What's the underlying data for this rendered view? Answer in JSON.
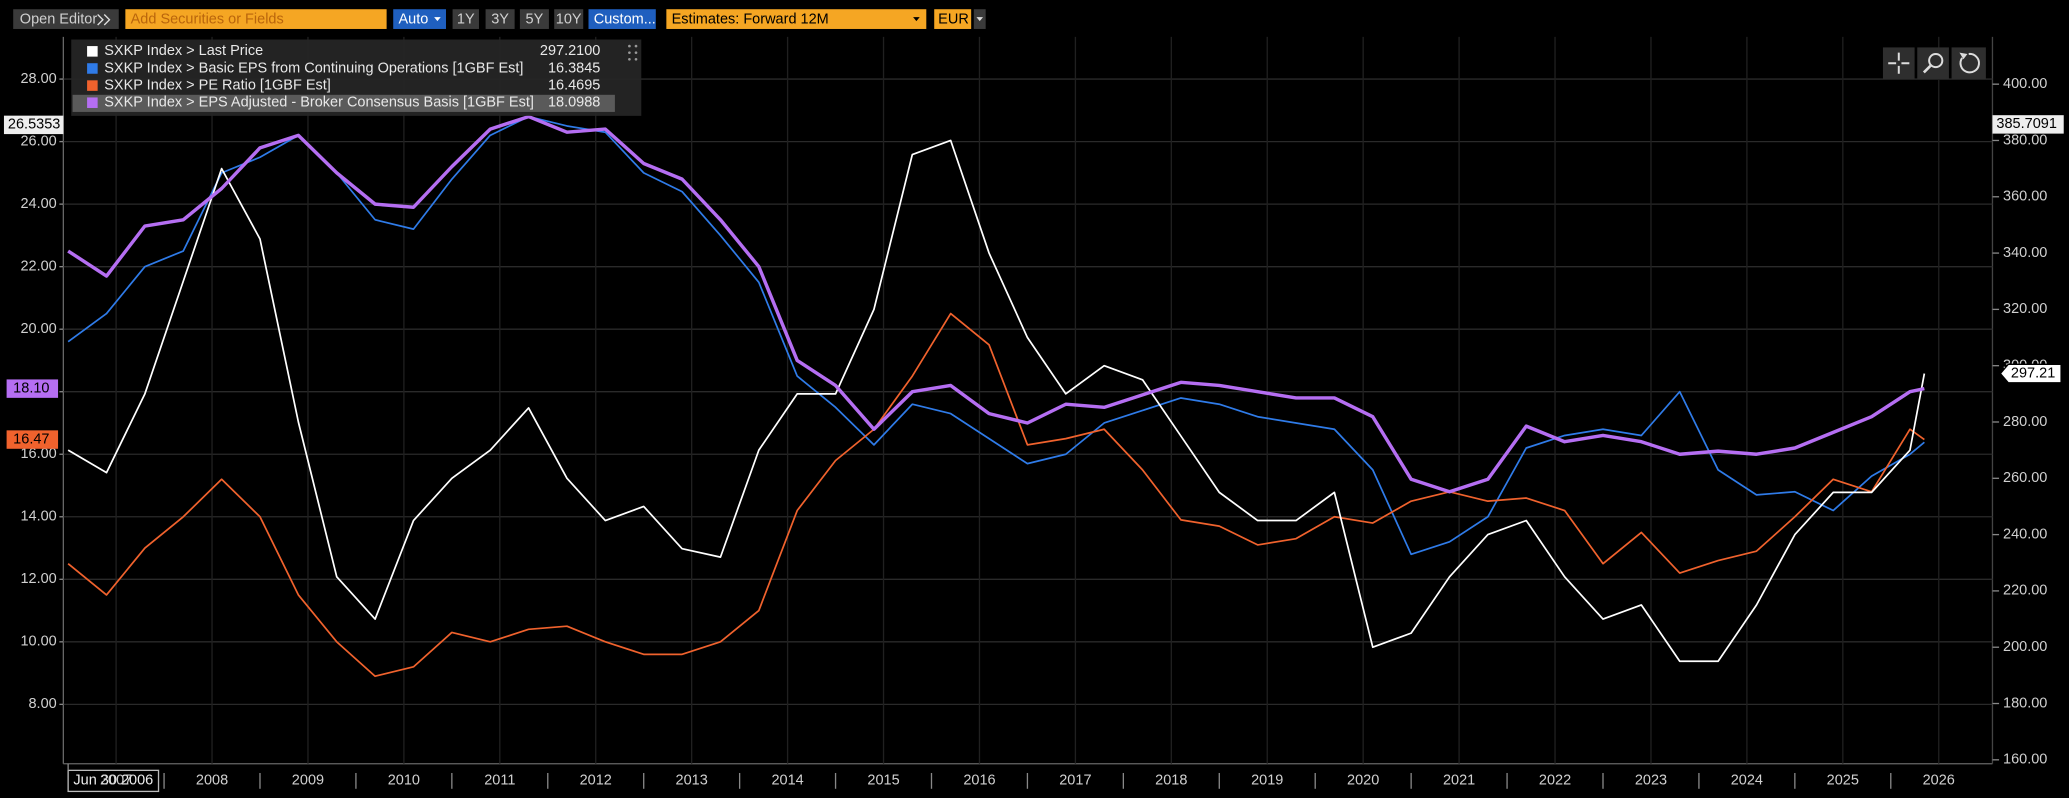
{
  "toolbar": {
    "open_editor": "Open Editor",
    "search_placeholder": "Add Securities or Fields",
    "auto": "Auto",
    "ranges": [
      "1Y",
      "3Y",
      "5Y",
      "10Y"
    ],
    "custom": "Custom...",
    "estimates": "Estimates: Forward 12M",
    "currency": "EUR"
  },
  "chart_data": {
    "type": "line",
    "x": [
      2006.5,
      2006.9,
      2007.3,
      2007.7,
      2008.1,
      2008.5,
      2008.9,
      2009.3,
      2009.7,
      2010.1,
      2010.5,
      2010.9,
      2011.3,
      2011.7,
      2012.1,
      2012.5,
      2012.9,
      2013.3,
      2013.7,
      2014.1,
      2014.5,
      2014.9,
      2015.3,
      2015.7,
      2016.1,
      2016.5,
      2016.9,
      2017.3,
      2017.7,
      2018.1,
      2018.5,
      2018.9,
      2019.3,
      2019.7,
      2020.1,
      2020.5,
      2020.9,
      2021.3,
      2021.7,
      2022.1,
      2022.5,
      2022.9,
      2023.3,
      2023.7,
      2024.1,
      2024.5,
      2024.9,
      2025.3,
      2025.7,
      2025.85
    ],
    "series": [
      {
        "name": "SXKP Index > Last Price",
        "color": "#ffffff",
        "axis": "y2",
        "legend_value": "297.2100",
        "last_label": "297.21",
        "values": [
          270,
          262,
          290,
          330,
          370,
          345,
          280,
          225,
          210,
          245,
          260,
          270,
          285,
          260,
          245,
          250,
          235,
          232,
          270,
          290,
          290,
          320,
          375,
          380,
          340,
          310,
          290,
          300,
          295,
          275,
          255,
          245,
          245,
          255,
          200,
          205,
          225,
          240,
          245,
          225,
          210,
          215,
          195,
          195,
          215,
          240,
          255,
          255,
          270,
          297.21
        ]
      },
      {
        "name": "SXKP Index > Basic EPS from Continuing Operations [1GBF Est]",
        "color": "#2f7be8",
        "legend_value": "16.3845",
        "values": [
          19.6,
          20.5,
          22,
          22.5,
          25,
          25.5,
          26.2,
          25,
          23.5,
          23.2,
          24.8,
          26.2,
          26.8,
          26.5,
          26.3,
          25,
          24.4,
          23,
          21.5,
          18.5,
          17.5,
          16.3,
          17.6,
          17.3,
          16.5,
          15.7,
          16,
          17,
          17.4,
          17.8,
          17.6,
          17.2,
          17,
          16.8,
          15.5,
          12.8,
          13.2,
          14,
          16.2,
          16.6,
          16.8,
          16.6,
          18,
          15.5,
          14.7,
          14.8,
          14.2,
          15.3,
          16,
          16.3845
        ]
      },
      {
        "name": "SXKP Index > PE Ratio [1GBF Est]",
        "color": "#f0622d",
        "legend_value": "16.4695",
        "last_label": "16.47",
        "values": [
          12.5,
          11.5,
          13,
          14,
          15.2,
          14,
          11.5,
          10,
          8.9,
          9.2,
          10.3,
          10,
          10.4,
          10.5,
          10,
          9.6,
          9.6,
          10,
          11,
          14.2,
          15.8,
          16.8,
          18.5,
          20.5,
          19.5,
          16.3,
          16.5,
          16.8,
          15.5,
          13.9,
          13.7,
          13.1,
          13.3,
          14,
          13.8,
          14.5,
          14.8,
          14.5,
          14.6,
          14.2,
          12.5,
          13.5,
          12.2,
          12.6,
          12.9,
          14,
          15.2,
          14.8,
          16.8,
          16.4695
        ]
      },
      {
        "name": "SXKP Index > EPS Adjusted - Broker Consensus Basis [1GBF Est]",
        "color": "#b56ef2",
        "legend_value": "18.0988",
        "last_label": "18.10",
        "values": [
          22.5,
          21.7,
          23.3,
          23.5,
          24.5,
          25.8,
          26.2,
          25,
          24,
          23.9,
          25.2,
          26.4,
          26.8,
          26.3,
          26.4,
          25.3,
          24.8,
          23.5,
          22,
          19,
          18.2,
          16.8,
          18,
          18.2,
          17.3,
          17,
          17.6,
          17.5,
          17.9,
          18.3,
          18.2,
          18,
          17.8,
          17.8,
          17.2,
          15.2,
          14.8,
          15.2,
          16.9,
          16.4,
          16.6,
          16.4,
          16,
          16.1,
          16,
          16.2,
          16.7,
          17.2,
          18,
          18.0988
        ]
      }
    ],
    "xlim": [
      2006.45,
      2026.56
    ],
    "xticks": [
      {
        "value": 2006.5,
        "label": "Jun 30 2006"
      },
      2007,
      2008,
      2009,
      2010,
      2011,
      2012,
      2013,
      2014,
      2015,
      2016,
      2017,
      2018,
      2019,
      2020,
      2021,
      2022,
      2023,
      2024,
      2025,
      2026
    ],
    "ylim": [
      6.1,
      29.35
    ],
    "yticks": [
      {
        "value": 8,
        "label": "8.00"
      },
      {
        "value": 10,
        "label": "10.00"
      },
      {
        "value": 12,
        "label": "12.00"
      },
      {
        "value": 14,
        "label": "14.00"
      },
      {
        "value": 16,
        "label": "16.00"
      },
      {
        "value": 18,
        "label": "18.00"
      },
      {
        "value": 20,
        "label": "20.00"
      },
      {
        "value": 22,
        "label": "22.00"
      },
      {
        "value": 24,
        "label": "24.00"
      },
      {
        "value": 26,
        "label": "26.00"
      },
      {
        "value": 28,
        "label": "28.00"
      }
    ],
    "y2lim": [
      158.6,
      416.8
    ],
    "y2ticks": [
      {
        "value": 160,
        "label": "160.00"
      },
      {
        "value": 180,
        "label": "180.00"
      },
      {
        "value": 200,
        "label": "200.00"
      },
      {
        "value": 220,
        "label": "220.00"
      },
      {
        "value": 240,
        "label": "240.00"
      },
      {
        "value": 260,
        "label": "260.00"
      },
      {
        "value": 280,
        "label": "280.00"
      },
      {
        "value": 300,
        "label": "300.00"
      },
      {
        "value": 320,
        "label": "320.00"
      },
      {
        "value": 340,
        "label": "340.00"
      },
      {
        "value": 360,
        "label": "360.00"
      },
      {
        "value": 380,
        "label": "380.00"
      },
      {
        "value": 400,
        "label": "400.00"
      }
    ],
    "cursor": {
      "y": 26.5353,
      "y2": 385.7091
    },
    "grid": true
  }
}
